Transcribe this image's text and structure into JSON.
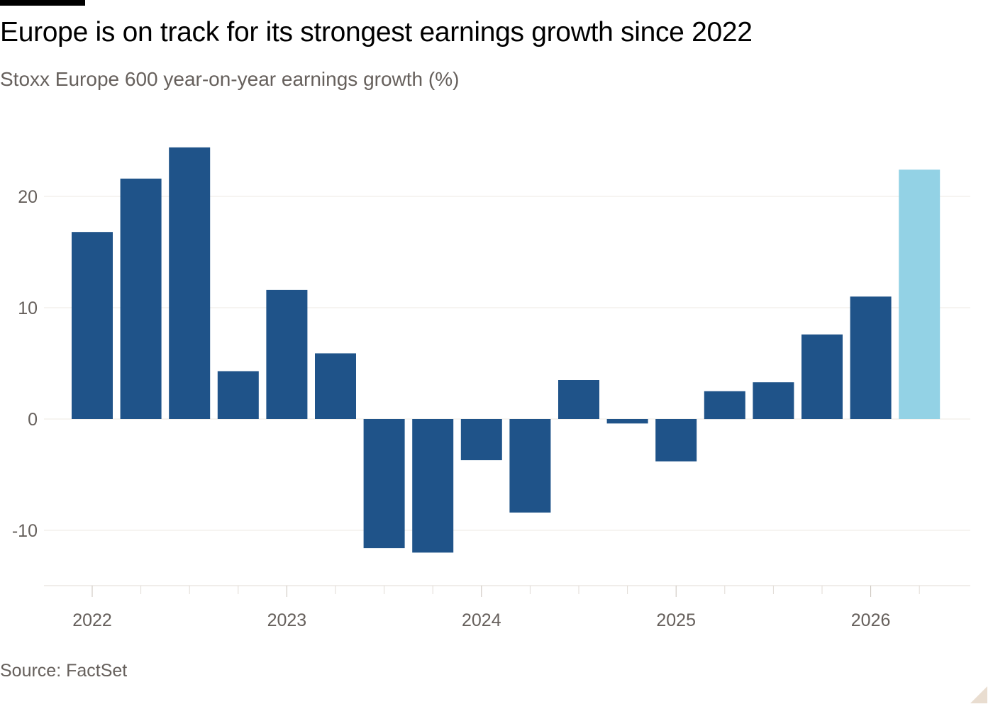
{
  "header": {
    "title": "Europe is on track for its strongest earnings growth since 2022",
    "subtitle": "Stoxx Europe 600 year-on-year earnings growth (%)"
  },
  "footer": {
    "source": "Source: FactSet"
  },
  "colors": {
    "actual": "#1f5389",
    "forecast": "#93d2e5",
    "grid": "#ece8e3",
    "axis_text": "#66605c",
    "axis_line": "#e0dbd5"
  },
  "chart_data": {
    "type": "bar",
    "title": "Europe is on track for its strongest earnings growth since 2022",
    "subtitle": "Stoxx Europe 600 year-on-year earnings growth (%)",
    "xlabel": "",
    "ylabel": "",
    "ylim": [
      -15,
      25
    ],
    "yticks": [
      20,
      10,
      0,
      -10
    ],
    "x_tick_labels": [
      "2022",
      "2023",
      "2024",
      "2025",
      "2026"
    ],
    "grid": true,
    "legend": "none",
    "categories": [
      "2022 Q1",
      "2022 Q2",
      "2022 Q3",
      "2022 Q4",
      "2023 Q1",
      "2023 Q2",
      "2023 Q3",
      "2023 Q4",
      "2024 Q1",
      "2024 Q2",
      "2024 Q3",
      "2024 Q4",
      "2025 Q1",
      "2025 Q2",
      "2025 Q3",
      "2025 Q4",
      "2026 Q1",
      "2026 Q2"
    ],
    "values": [
      16.8,
      21.6,
      24.4,
      4.3,
      11.6,
      5.9,
      -11.6,
      -12.0,
      -3.7,
      -8.4,
      3.5,
      -0.4,
      -3.8,
      2.5,
      3.3,
      7.6,
      11.0,
      22.4
    ],
    "forecast_from_index": 17
  }
}
